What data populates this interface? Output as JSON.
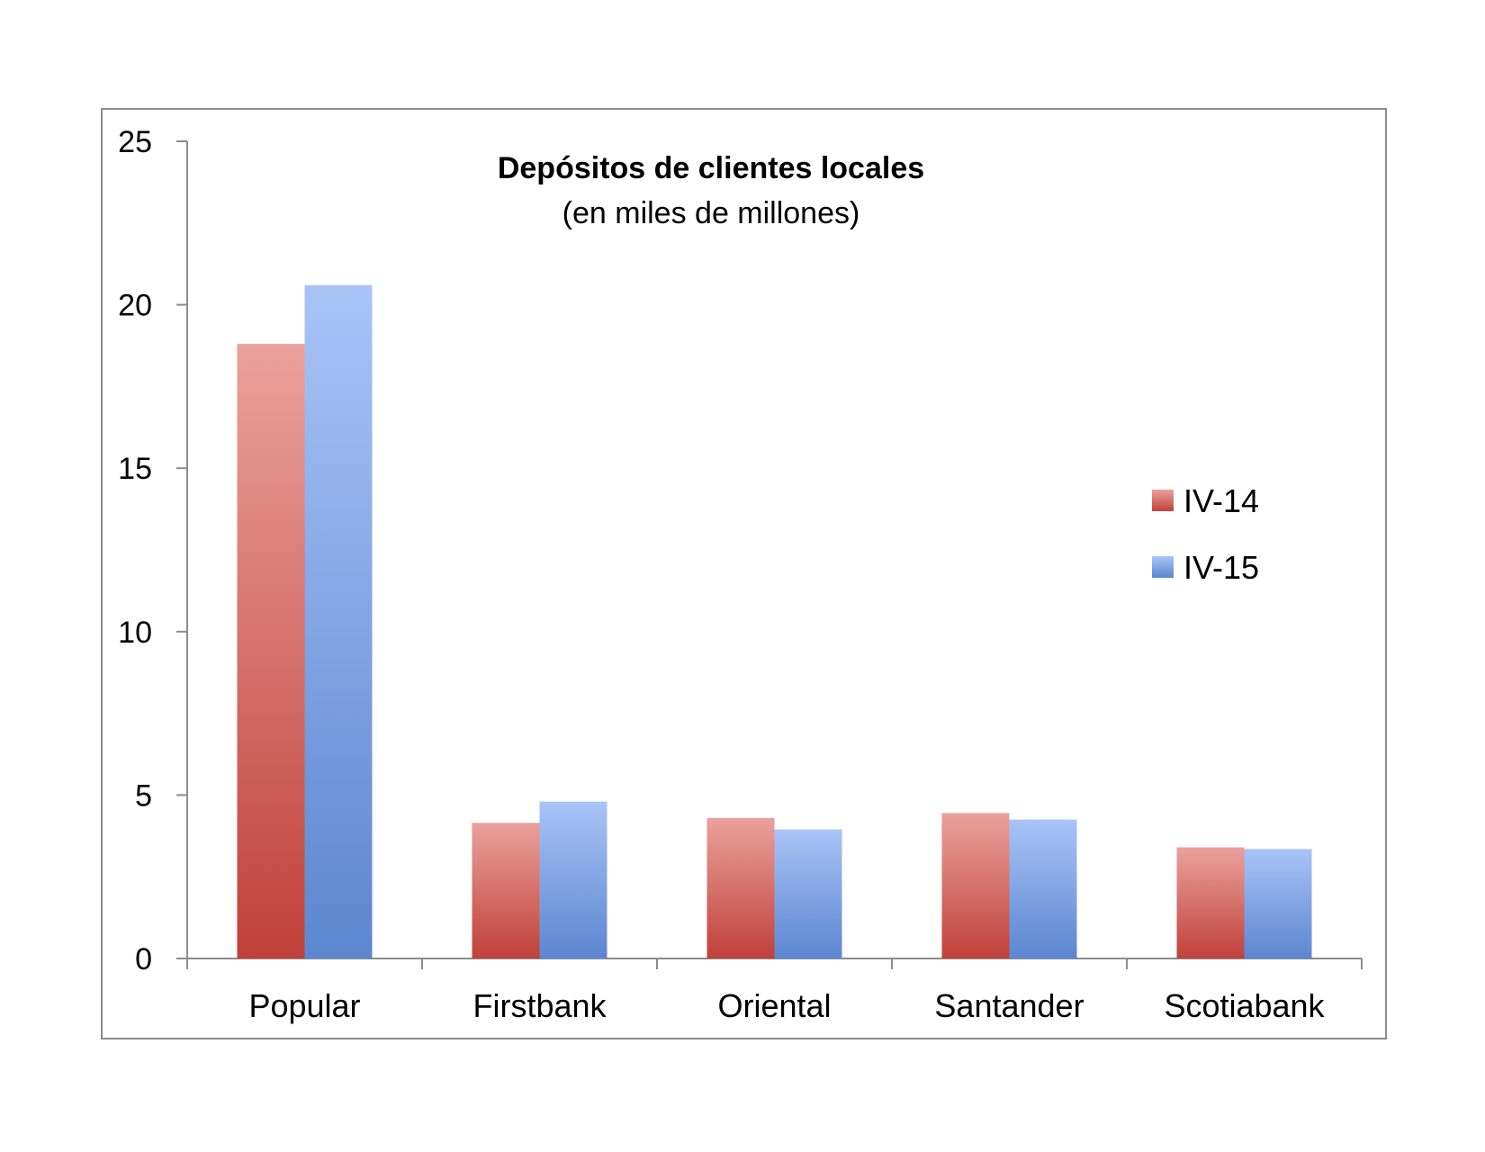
{
  "chart_data": {
    "type": "bar",
    "title": "Depósitos de clientes locales",
    "subtitle": "(en miles de millones)",
    "xlabel": "",
    "ylabel": "",
    "categories": [
      "Popular",
      "Firstbank",
      "Oriental",
      "Santander",
      "Scotiabank"
    ],
    "series": [
      {
        "name": "IV-14",
        "values": [
          18.8,
          4.15,
          4.3,
          4.45,
          3.4
        ],
        "color_top": "#eba19c",
        "color_bottom": "#c0413a"
      },
      {
        "name": "IV-15",
        "values": [
          20.6,
          4.8,
          3.95,
          4.25,
          3.35
        ],
        "color_top": "#a9c4f7",
        "color_bottom": "#5c86d0"
      }
    ],
    "ylim": [
      0,
      25
    ],
    "yticks": [
      0,
      5,
      10,
      15,
      20,
      25
    ],
    "legend_position": "right",
    "grid": false
  }
}
